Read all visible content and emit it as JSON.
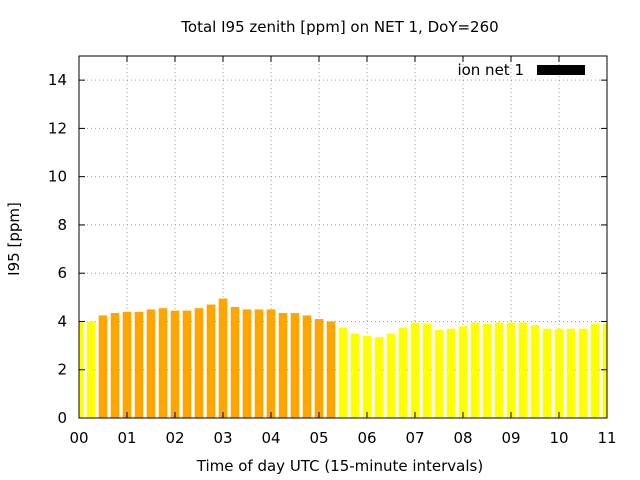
{
  "chart_data": {
    "type": "bar",
    "title": "Total I95 zenith [ppm] on NET 1, DoY=260",
    "xlabel": "Time of day UTC (15-minute intervals)",
    "ylabel": "I95 [ppm]",
    "xlim": [
      0,
      11
    ],
    "ylim": [
      0,
      15
    ],
    "xticks": [
      "00",
      "01",
      "02",
      "03",
      "04",
      "05",
      "06",
      "07",
      "08",
      "09",
      "10",
      "11"
    ],
    "yticks": [
      "0",
      "2",
      "4",
      "6",
      "8",
      "10",
      "12",
      "14"
    ],
    "grid": true,
    "legend_position": "top-right",
    "legend": [
      {
        "name": "ion net 1",
        "color": "#000000"
      }
    ],
    "bar_width_hours": 0.18,
    "colors": {
      "yellow": "#ffff00",
      "orange": "#ffa500"
    },
    "series": [
      {
        "name": "ion net 1",
        "x": [
          0.0,
          0.25,
          0.5,
          0.75,
          1.0,
          1.25,
          1.5,
          1.75,
          2.0,
          2.25,
          2.5,
          2.75,
          3.0,
          3.25,
          3.5,
          3.75,
          4.0,
          4.25,
          4.5,
          4.75,
          5.0,
          5.25,
          5.5,
          5.75,
          6.0,
          6.25,
          6.5,
          6.75,
          7.0,
          7.25,
          7.5,
          7.75,
          8.0,
          8.25,
          8.5,
          8.75,
          9.0,
          9.25,
          9.5,
          9.75,
          10.0,
          10.25,
          10.5,
          10.75,
          11.0
        ],
        "values": [
          4.0,
          4.0,
          4.25,
          4.35,
          4.4,
          4.4,
          4.5,
          4.55,
          4.45,
          4.45,
          4.55,
          4.7,
          4.95,
          4.6,
          4.5,
          4.5,
          4.5,
          4.35,
          4.35,
          4.25,
          4.1,
          4.0,
          3.75,
          3.5,
          3.4,
          3.35,
          3.5,
          3.75,
          3.95,
          3.9,
          3.65,
          3.7,
          3.8,
          3.95,
          3.9,
          3.95,
          3.95,
          3.95,
          3.85,
          3.7,
          3.7,
          3.7,
          3.7,
          3.9,
          3.9
        ],
        "bar_colors": [
          "yellow",
          "yellow",
          "orange",
          "orange",
          "orange",
          "orange",
          "orange",
          "orange",
          "orange",
          "orange",
          "orange",
          "orange",
          "orange",
          "orange",
          "orange",
          "orange",
          "orange",
          "orange",
          "orange",
          "orange",
          "orange",
          "orange",
          "yellow",
          "yellow",
          "yellow",
          "yellow",
          "yellow",
          "yellow",
          "yellow",
          "yellow",
          "yellow",
          "yellow",
          "yellow",
          "yellow",
          "yellow",
          "yellow",
          "yellow",
          "yellow",
          "yellow",
          "yellow",
          "yellow",
          "yellow",
          "yellow",
          "yellow",
          "yellow"
        ]
      }
    ]
  }
}
